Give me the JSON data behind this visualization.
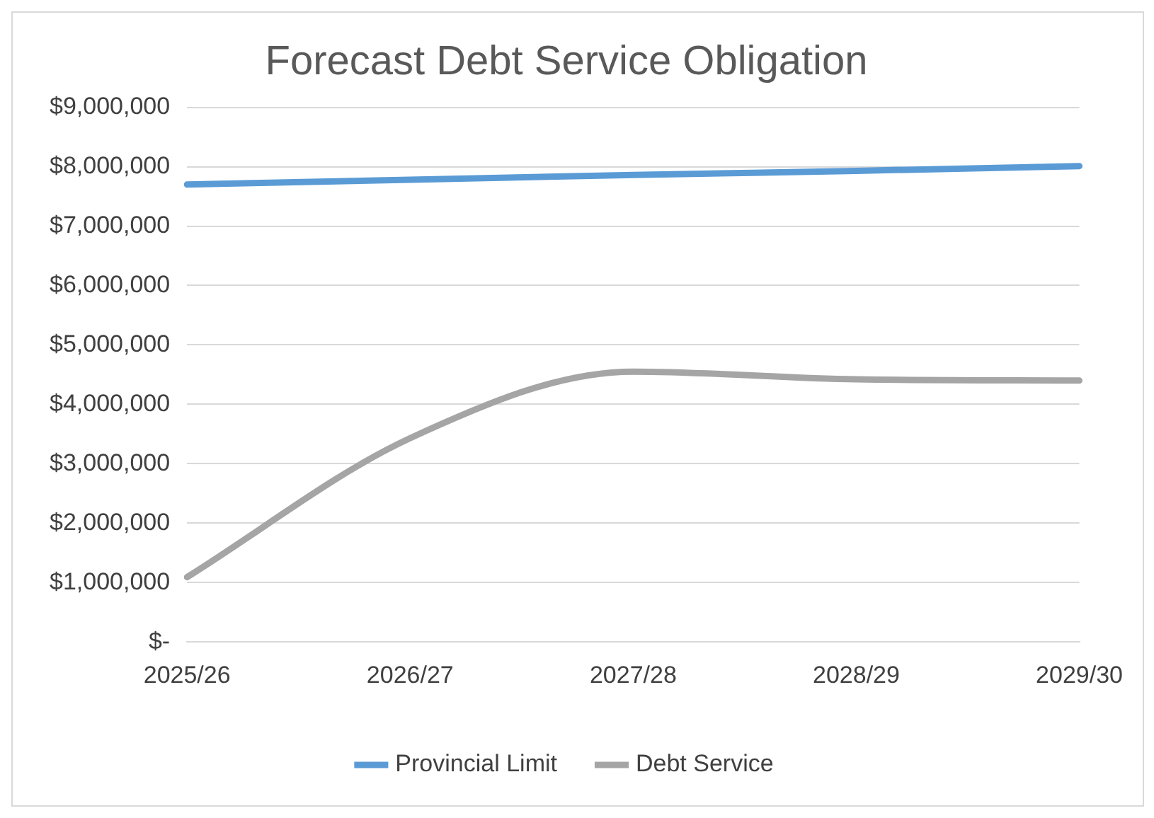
{
  "chart_data": {
    "type": "line",
    "title": "Forecast Debt Service Obligation",
    "categories": [
      "2025/26",
      "2026/27",
      "2027/28",
      "2028/29",
      "2029/30"
    ],
    "series": [
      {
        "name": "Provincial Limit",
        "color": "#5b9bd5",
        "values": [
          7700000,
          7780000,
          7860000,
          7930000,
          8010000
        ]
      },
      {
        "name": "Debt Service",
        "color": "#a5a5a5",
        "values": [
          1090000,
          3430000,
          4550000,
          4420000,
          4400000
        ]
      }
    ],
    "ylim": [
      0,
      9000000
    ],
    "yticks": [
      {
        "value": 0,
        "label": "$-"
      },
      {
        "value": 1000000,
        "label": "$1,000,000"
      },
      {
        "value": 2000000,
        "label": "$2,000,000"
      },
      {
        "value": 3000000,
        "label": "$3,000,000"
      },
      {
        "value": 4000000,
        "label": "$4,000,000"
      },
      {
        "value": 5000000,
        "label": "$5,000,000"
      },
      {
        "value": 6000000,
        "label": "$6,000,000"
      },
      {
        "value": 7000000,
        "label": "$7,000,000"
      },
      {
        "value": 8000000,
        "label": "$8,000,000"
      },
      {
        "value": 9000000,
        "label": "$9,000,000"
      }
    ],
    "grid": "y",
    "legend": "bottom",
    "marker": "none",
    "line_style": "solid"
  }
}
